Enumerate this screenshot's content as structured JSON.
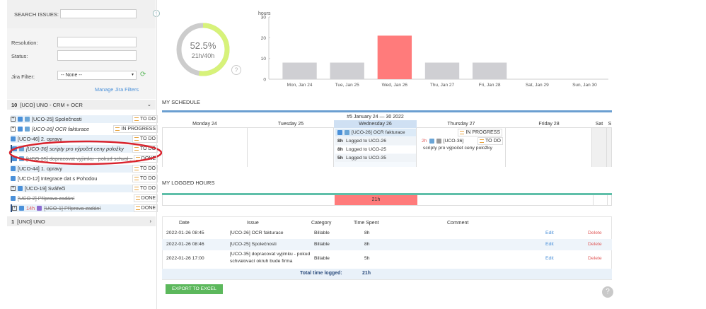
{
  "search": {
    "label": "SEARCH ISSUES:",
    "value": ""
  },
  "filters": {
    "resolution_label": "Resolution:",
    "resolution_value": "",
    "status_label": "Status:",
    "status_value": "",
    "jira_filter_label": "Jira Filter:",
    "jira_filter_value": "-- None --",
    "manage_link": "Manage Jira Filters"
  },
  "groups": [
    {
      "count": "10",
      "name": "[UCO] UNO - CRM + OCR",
      "expanded": true
    },
    {
      "count": "1",
      "name": "[UNO] UNO",
      "expanded": false
    }
  ],
  "issues": [
    {
      "text": "[UCO-25] Společnosti",
      "status": "TO DO"
    },
    {
      "text": "[UCO-26] OCR fakturace",
      "status": "IN PROGRESS"
    },
    {
      "text": "[UCO-46] 2. opravy",
      "status": "TO DO"
    },
    {
      "text": "[UCO-36] scripty pro výpočet ceny položky",
      "status": "TO DO"
    },
    {
      "text": "[UCO-35] dopracovat vyjimku - pokud schval...",
      "status": "DONE"
    },
    {
      "text": "[UCO-44] 1. opravy",
      "status": "TO DO"
    },
    {
      "text": "[UCO-12] Integrace dat s Pohodou",
      "status": "TO DO"
    },
    {
      "text": "[UCO-19] Svářeči",
      "status": "TO DO"
    },
    {
      "text": "[UCO-2] Příprava zadání",
      "status": "DONE"
    },
    {
      "text": "[UCO-1] Příprava zadání",
      "status": "DONE",
      "hours": "14h"
    }
  ],
  "donut": {
    "percent": "52.5%",
    "hours": "21h/40h",
    "fraction": 0.525,
    "help": "?"
  },
  "colors": {
    "accent": "#4a90d9",
    "highlight": "#ff7b7b",
    "bar": "#cfcfd3",
    "donut_fill": "#d7f27a",
    "donut_track": "#cccccc",
    "schedule_line": "#6b9fd1",
    "logged_line": "#5fbfa9",
    "export": "#5cb85c",
    "annotation": "#d9232d"
  },
  "chart_data": {
    "type": "bar",
    "ylabel": "hours",
    "ylim": [
      0,
      30
    ],
    "yticks": [
      "0",
      "10",
      "20",
      "30"
    ],
    "categories": [
      "Mon, Jan 24",
      "Tue, Jan 25",
      "Wed, Jan 26",
      "Thu, Jan 27",
      "Fri, Jan 28",
      "Sat, Jan 29",
      "Sun, Jan 30"
    ],
    "values": [
      8,
      8,
      21,
      8,
      8,
      0,
      0
    ],
    "highlight_index": 2
  },
  "schedule": {
    "title": "MY SCHEDULE",
    "week": "#5 January 24 — 30 2022",
    "days": [
      "Monday 24",
      "Tuesday 25",
      "Wednesday 26",
      "Thursday 27",
      "Friday 28",
      "Sat",
      "S"
    ],
    "wed_issue": "[UCO-26] OCR fakturace",
    "wed_status": "IN PROGRESS",
    "logs": [
      {
        "h": "8h",
        "t": "Logged to UCO-26"
      },
      {
        "h": "8h",
        "t": "Logged to UCO-25"
      },
      {
        "h": "5h",
        "t": "Logged to UCO-35"
      }
    ],
    "thu_hours": "2h",
    "thu_issue": "[UCO-36]",
    "thu_status": "TO DO",
    "thu_desc": "scripty pro výpočet ceny položky"
  },
  "logged": {
    "title": "MY LOGGED HOURS",
    "wed_total": "21h",
    "headers": [
      "Date",
      "Issue",
      "Category",
      "Time Spent",
      "Comment"
    ],
    "rows": [
      {
        "date": "2022-01-26 08:45",
        "issue": "[UCO-26] OCR fakturace",
        "issue2": "",
        "category": "Billable",
        "time": "8h",
        "edit": "Edit",
        "delete": "Delete"
      },
      {
        "date": "2022-01-26 08:46",
        "issue": "[UCO-25] Společnosti",
        "issue2": "",
        "category": "Billable",
        "time": "8h",
        "edit": "Edit",
        "delete": "Delete"
      },
      {
        "date": "2022-01-26 17:00",
        "issue": "[UCO-35] dopracovat vyjimku - pokud",
        "issue2": "schvalovací okruh bude firma",
        "category": "Billable",
        "time": "5h",
        "edit": "Edit",
        "delete": "Delete"
      }
    ],
    "total_label": "Total time logged:",
    "total_value": "21h",
    "export_label": "EXPORT TO EXCEL"
  }
}
